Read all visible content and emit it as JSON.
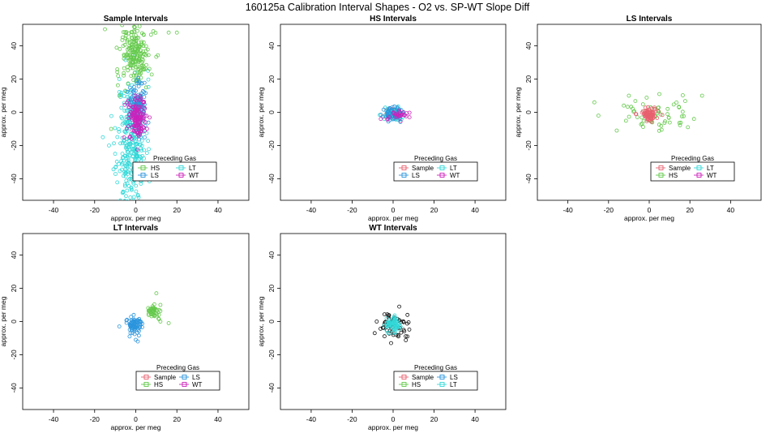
{
  "figure": {
    "title": "160125a   Calibration Interval Shapes - O2 vs. SP-WT Slope Diff"
  },
  "colors": {
    "Sample": "#e8606f",
    "HS": "#63c94a",
    "LS": "#2b95dd",
    "LT": "#33d8d8",
    "WT": "#cc22bb",
    "other": "#111111"
  },
  "chart_data": [
    {
      "type": "scatter",
      "title": "Sample Intervals",
      "xlabel": "approx. per meg",
      "ylabel": "approx. per meg",
      "xlim": [
        -55,
        55
      ],
      "ylim": [
        -53,
        53
      ],
      "xticks": [
        -40,
        -20,
        0,
        20,
        40
      ],
      "yticks": [
        -40,
        -20,
        0,
        20,
        40
      ],
      "legend": {
        "title": "Preceding Gas",
        "position": "bottom-right",
        "entries": [
          "HS",
          "LT",
          "LS",
          "WT"
        ]
      },
      "series": [
        {
          "name": "LT",
          "n": 320,
          "cx": -2,
          "cy": -20,
          "sx": 3.5,
          "sy": 20,
          "seed": 11,
          "extra": [
            [
              -13,
              -20
            ],
            [
              -10,
              -25
            ],
            [
              -16,
              -15
            ],
            [
              8,
              -40
            ],
            [
              -8,
              20
            ],
            [
              6,
              25
            ]
          ]
        },
        {
          "name": "HS",
          "n": 200,
          "cx": 0,
          "cy": 35,
          "sx": 3.5,
          "sy": 10,
          "seed": 12,
          "extra": [
            [
              -15,
              50
            ],
            [
              16,
              48
            ],
            [
              20,
              48
            ],
            [
              -12,
              -10
            ],
            [
              -8,
              10
            ],
            [
              5,
              15
            ]
          ]
        },
        {
          "name": "LS",
          "n": 120,
          "cx": 1,
          "cy": 4,
          "sx": 2.2,
          "sy": 8,
          "seed": 13,
          "extra": []
        },
        {
          "name": "WT",
          "n": 140,
          "cx": 1,
          "cy": -3,
          "sx": 2.2,
          "sy": 6,
          "seed": 14,
          "extra": [
            [
              -3,
              -15
            ],
            [
              -2,
              -16
            ]
          ]
        }
      ]
    },
    {
      "type": "scatter",
      "title": "HS Intervals",
      "xlabel": "approx. per meg",
      "ylabel": "approx. per meg",
      "xlim": [
        -55,
        55
      ],
      "ylim": [
        -53,
        53
      ],
      "xticks": [
        -40,
        -20,
        0,
        20,
        40
      ],
      "yticks": [
        -40,
        -20,
        0,
        20,
        40
      ],
      "legend": {
        "title": "Preceding Gas",
        "position": "bottom-center",
        "entries": [
          "Sample",
          "LT",
          "LS",
          "WT"
        ]
      },
      "series": [
        {
          "name": "Sample",
          "n": 40,
          "cx": 0,
          "cy": -1,
          "sx": 2,
          "sy": 1.6,
          "seed": 21,
          "extra": []
        },
        {
          "name": "LT",
          "n": 60,
          "cx": 0,
          "cy": -1,
          "sx": 2.2,
          "sy": 1.8,
          "seed": 22,
          "extra": []
        },
        {
          "name": "LS",
          "n": 60,
          "cx": 0,
          "cy": -1,
          "sx": 2.2,
          "sy": 1.8,
          "seed": 23,
          "extra": []
        },
        {
          "name": "WT",
          "n": 25,
          "cx": 2,
          "cy": -2,
          "sx": 3,
          "sy": 1.5,
          "seed": 24,
          "extra": [
            [
              8,
              -3
            ],
            [
              -6,
              -4
            ]
          ]
        }
      ]
    },
    {
      "type": "scatter",
      "title": "LS Intervals",
      "xlabel": "approx. per meg",
      "ylabel": "approx. per meg",
      "xlim": [
        -55,
        55
      ],
      "ylim": [
        -53,
        53
      ],
      "xticks": [
        -40,
        -20,
        0,
        20,
        40
      ],
      "yticks": [
        -40,
        -20,
        0,
        20,
        40
      ],
      "legend": {
        "title": "Preceding Gas",
        "position": "bottom-center",
        "entries": [
          "Sample",
          "LT",
          "HS",
          "WT"
        ]
      },
      "series": [
        {
          "name": "HS",
          "n": 60,
          "cx": 2,
          "cy": -2,
          "sx": 9,
          "sy": 5,
          "seed": 31,
          "extra": [
            [
              -27,
              6
            ],
            [
              -25,
              -2
            ],
            [
              26,
              10
            ],
            [
              22,
              -4
            ],
            [
              19,
              -9
            ],
            [
              -16,
              -11
            ],
            [
              -10,
              10
            ],
            [
              5,
              11
            ]
          ]
        },
        {
          "name": "Sample",
          "n": 70,
          "cx": 0,
          "cy": -1,
          "sx": 2.4,
          "sy": 2,
          "seed": 32,
          "extra": []
        }
      ]
    },
    {
      "type": "scatter",
      "title": "LT Intervals",
      "xlabel": "approx. per meg",
      "ylabel": "approx. per meg",
      "xlim": [
        -55,
        55
      ],
      "ylim": [
        -53,
        53
      ],
      "xticks": [
        -40,
        -20,
        0,
        20,
        40
      ],
      "yticks": [
        -40,
        -20,
        0,
        20,
        40
      ],
      "legend": {
        "title": "Preceding Gas",
        "position": "bottom-center",
        "entries": [
          "Sample",
          "LS",
          "HS",
          "WT"
        ]
      },
      "series": [
        {
          "name": "HS",
          "n": 45,
          "cx": 9,
          "cy": 6,
          "sx": 1.8,
          "sy": 1.8,
          "seed": 41,
          "extra": [
            [
              10,
              17
            ],
            [
              12,
              10
            ],
            [
              12,
              0
            ],
            [
              16,
              -1
            ]
          ]
        },
        {
          "name": "LS",
          "n": 75,
          "cx": -1,
          "cy": -2,
          "sx": 2.2,
          "sy": 2.4,
          "seed": 42,
          "extra": [
            [
              0,
              -11
            ],
            [
              1,
              -12
            ],
            [
              -3,
              -9
            ],
            [
              -8,
              -3
            ],
            [
              -1,
              4
            ]
          ]
        }
      ]
    },
    {
      "type": "scatter",
      "title": "WT Intervals",
      "xlabel": "approx. per meg",
      "ylabel": "approx. per meg",
      "xlim": [
        -55,
        55
      ],
      "ylim": [
        -53,
        53
      ],
      "xticks": [
        -40,
        -20,
        0,
        20,
        40
      ],
      "yticks": [
        -40,
        -20,
        0,
        20,
        40
      ],
      "legend": {
        "title": "Preceding Gas",
        "position": "bottom-center",
        "entries": [
          "Sample",
          "LS",
          "HS",
          "LT"
        ]
      },
      "series": [
        {
          "name": "other",
          "n": 55,
          "cx": 0,
          "cy": -3,
          "sx": 4,
          "sy": 4,
          "seed": 51,
          "extra": [
            [
              -8,
              0
            ],
            [
              -9,
              -7
            ],
            [
              7,
              4
            ],
            [
              3,
              9
            ],
            [
              7,
              -9
            ],
            [
              -1,
              -13
            ]
          ]
        },
        {
          "name": "LT",
          "n": 70,
          "cx": 0,
          "cy": -2,
          "sx": 1.7,
          "sy": 2.4,
          "seed": 52,
          "extra": []
        }
      ]
    }
  ]
}
